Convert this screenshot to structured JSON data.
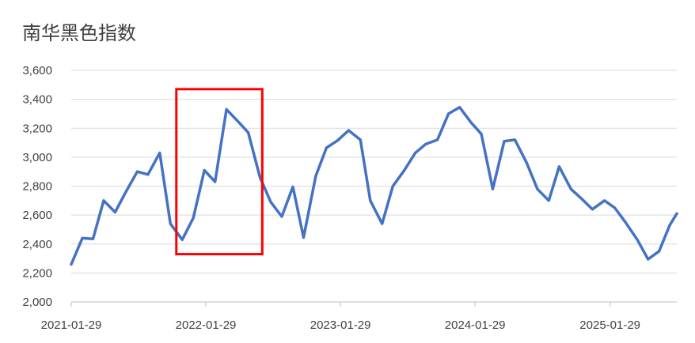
{
  "chart_data": {
    "type": "line",
    "title": "南华黑色指数",
    "xlabel": "",
    "ylabel": "",
    "ylim": [
      2000,
      3600
    ],
    "yticks": [
      2000,
      2200,
      2400,
      2600,
      2800,
      3000,
      3200,
      3400,
      3600
    ],
    "ytick_labels": [
      "2,000",
      "2,200",
      "2,400",
      "2,600",
      "2,800",
      "3,000",
      "3,200",
      "3,400",
      "3,600"
    ],
    "xlim": [
      "2021-01-29",
      "2025-07-29"
    ],
    "xticks": [
      "2021-01-29",
      "2022-01-29",
      "2023-01-29",
      "2024-01-29",
      "2025-01-29"
    ],
    "grid": true,
    "colors": {
      "line": "#4472C4",
      "grid": "#d9d9d9",
      "axis": "#bfbfbf",
      "highlight": "#ff0000"
    },
    "highlight_box": {
      "x_start": "2021-11-10",
      "x_end": "2022-07-01",
      "y_low": 2330,
      "y_high": 3470
    },
    "series": [
      {
        "x": [
          "2021-01-29",
          "2021-02-28",
          "2021-03-29",
          "2021-04-27",
          "2021-05-28",
          "2021-06-26",
          "2021-07-27",
          "2021-08-25",
          "2021-09-26",
          "2021-10-25",
          "2021-11-26",
          "2021-12-26",
          "2022-01-25",
          "2022-02-23",
          "2022-03-26",
          "2022-04-25",
          "2022-05-24",
          "2022-06-25",
          "2022-07-24",
          "2022-08-23",
          "2022-09-22",
          "2022-10-21",
          "2022-11-23",
          "2022-12-22",
          "2023-01-21",
          "2023-02-20",
          "2023-03-24",
          "2023-04-20",
          "2023-05-22",
          "2023-06-20",
          "2023-07-20",
          "2023-08-20",
          "2023-09-17",
          "2023-10-19",
          "2023-11-18",
          "2023-12-18",
          "2024-01-18",
          "2024-02-15",
          "2024-03-17",
          "2024-04-17",
          "2024-05-16",
          "2024-06-17",
          "2024-07-16",
          "2024-08-16",
          "2024-09-13",
          "2024-10-15",
          "2024-11-14",
          "2024-12-12",
          "2025-01-14",
          "2025-02-11",
          "2025-03-12",
          "2025-04-13",
          "2025-05-12",
          "2025-06-11",
          "2025-07-10",
          "2025-07-29"
        ],
        "values": [
          2260,
          2440,
          2435,
          2700,
          2620,
          2760,
          2900,
          2880,
          3030,
          2540,
          2430,
          2580,
          2910,
          2830,
          3330,
          3250,
          3170,
          2860,
          2690,
          2590,
          2795,
          2445,
          2870,
          3065,
          3115,
          3185,
          3120,
          2700,
          2540,
          2800,
          2905,
          3030,
          3090,
          3120,
          3300,
          3345,
          3240,
          3160,
          2780,
          3110,
          3120,
          2960,
          2780,
          2700,
          2935,
          2780,
          2710,
          2640,
          2700,
          2650,
          2550,
          2430,
          2295,
          2350,
          2530,
          2610
        ]
      }
    ]
  }
}
